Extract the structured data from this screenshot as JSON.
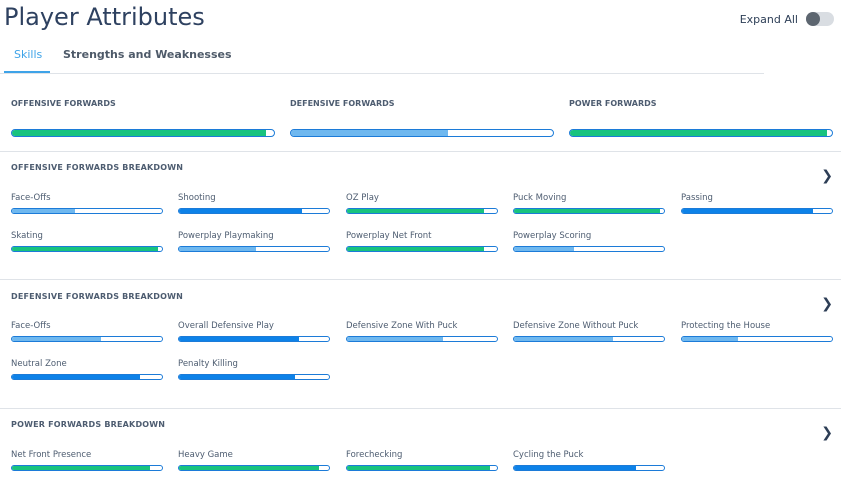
{
  "header": {
    "title": "Player Attributes",
    "expand_all": "Expand All"
  },
  "tabs": [
    {
      "label": "Skills"
    },
    {
      "label": "Strengths and Weaknesses"
    }
  ],
  "summary": [
    {
      "label": "OFFENSIVE FORWARDS",
      "value": 97,
      "color": "green"
    },
    {
      "label": "DEFENSIVE FORWARDS",
      "value": 60,
      "color": "light"
    },
    {
      "label": "POWER FORWARDS",
      "value": 98,
      "color": "green"
    }
  ],
  "sections": [
    {
      "title": "OFFENSIVE FORWARDS BREAKDOWN",
      "stats": [
        {
          "label": "Face-Offs",
          "value": 42,
          "color": "light"
        },
        {
          "label": "Shooting",
          "value": 82,
          "color": "blue"
        },
        {
          "label": "OZ Play",
          "value": 91,
          "color": "green"
        },
        {
          "label": "Puck Moving",
          "value": 97,
          "color": "green"
        },
        {
          "label": "Passing",
          "value": 87,
          "color": "blue"
        },
        {
          "label": "Skating",
          "value": 97,
          "color": "green"
        },
        {
          "label": "Powerplay Playmaking",
          "value": 51,
          "color": "light"
        },
        {
          "label": "Powerplay Net Front",
          "value": 91,
          "color": "green"
        },
        {
          "label": "Powerplay Scoring",
          "value": 40,
          "color": "light"
        }
      ]
    },
    {
      "title": "DEFENSIVE FORWARDS BREAKDOWN",
      "stats": [
        {
          "label": "Face-Offs",
          "value": 59,
          "color": "light"
        },
        {
          "label": "Overall Defensive Play",
          "value": 80,
          "color": "blue"
        },
        {
          "label": "Defensive Zone With Puck",
          "value": 64,
          "color": "light"
        },
        {
          "label": "Defensive Zone Without Puck",
          "value": 66,
          "color": "light"
        },
        {
          "label": "Protecting the House",
          "value": 37,
          "color": "light"
        },
        {
          "label": "Neutral Zone",
          "value": 85,
          "color": "blue"
        },
        {
          "label": "Penalty Killing",
          "value": 77,
          "color": "blue"
        }
      ]
    },
    {
      "title": "POWER FORWARDS BREAKDOWN",
      "stats": [
        {
          "label": "Net Front Presence",
          "value": 92,
          "color": "green"
        },
        {
          "label": "Heavy Game",
          "value": 93,
          "color": "green"
        },
        {
          "label": "Forechecking",
          "value": 95,
          "color": "green"
        },
        {
          "label": "Cycling the Puck",
          "value": 81,
          "color": "blue"
        }
      ]
    }
  ],
  "colors": {
    "green": "#18c37e",
    "blue": "#0d82e8",
    "light": "#6fb8ef",
    "accent": "#3ea3e8"
  }
}
